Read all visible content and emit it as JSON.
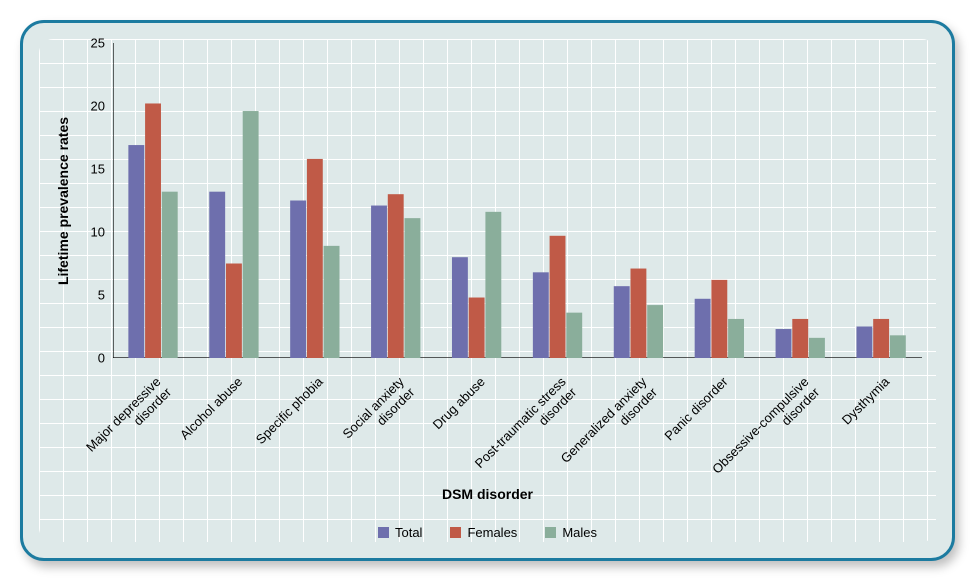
{
  "chart": {
    "type": "grouped-bar",
    "frame_border_color": "#1c7ba0",
    "background_color": "#dee9e9",
    "grid_color": "#ffffff",
    "ylabel": "Lifetime prevalence rates",
    "xlabel": "DSM disorder",
    "label_fontsize": 14,
    "tick_fontsize": 13,
    "ylim": [
      0,
      25
    ],
    "ytick_step": 5,
    "yticks": [
      0,
      5,
      10,
      15,
      20,
      25
    ],
    "categories": [
      "Major depressive disorder",
      "Alcohol abuse",
      "Specific phobia",
      "Social anxiety disorder",
      "Drug abuse",
      "Post-traumatic stress disorder",
      "Generalized anxiety disorder",
      "Panic disorder",
      "Obsessive-compulsive disorder",
      "Dysthymia"
    ],
    "category_labels_wrapped": [
      [
        "Major depressive",
        "disorder"
      ],
      [
        "Alcohol abuse",
        ""
      ],
      [
        "Specific phobia",
        ""
      ],
      [
        "Social anxiety",
        "disorder"
      ],
      [
        "Drug abuse",
        ""
      ],
      [
        "Post-traumatic stress",
        "disorder"
      ],
      [
        "Generalized anxiety",
        "disorder"
      ],
      [
        "Panic disorder",
        ""
      ],
      [
        "Obsessive-compulsive",
        "disorder"
      ],
      [
        "Dysthymia",
        ""
      ]
    ],
    "series": [
      {
        "name": "Total",
        "color": "#6e6fad",
        "values": [
          16.9,
          13.2,
          12.5,
          12.1,
          8.0,
          6.8,
          5.7,
          4.7,
          2.3,
          2.5
        ]
      },
      {
        "name": "Females",
        "color": "#c05a47",
        "values": [
          20.2,
          7.5,
          15.8,
          13.0,
          4.8,
          9.7,
          7.1,
          6.2,
          3.1,
          3.1
        ]
      },
      {
        "name": "Males",
        "color": "#8aae9b",
        "values": [
          13.2,
          19.6,
          8.9,
          11.1,
          11.6,
          3.6,
          4.2,
          3.1,
          1.6,
          1.8
        ]
      }
    ],
    "bar_group_width": 0.62,
    "axis_color": "#000000"
  }
}
